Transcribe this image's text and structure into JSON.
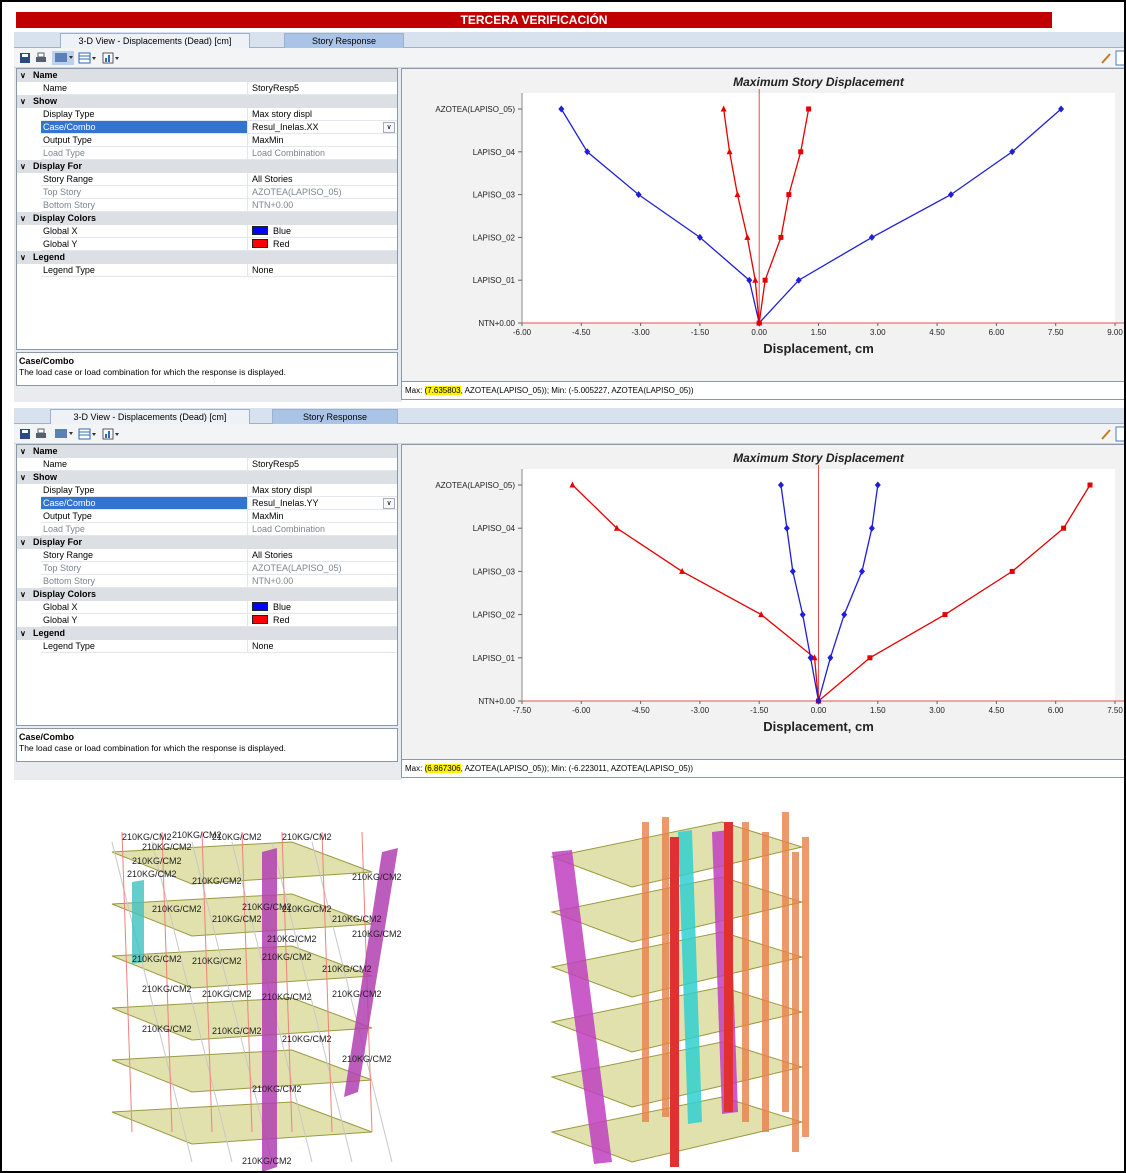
{
  "header": {
    "title": "TERCERA VERIFICACIÓN"
  },
  "panels": [
    {
      "tabs": [
        "3-D View  - Displacements (Dead)  [cm]",
        "Story Response"
      ],
      "properties": [
        {
          "type": "cat",
          "label": "Name"
        },
        {
          "type": "item",
          "key": "Name",
          "value": "StoryResp5"
        },
        {
          "type": "cat",
          "label": "Show"
        },
        {
          "type": "item",
          "key": "Display Type",
          "value": "Max story displ"
        },
        {
          "type": "sel",
          "key": "Case/Combo",
          "value": "Resul_Inelas.XX"
        },
        {
          "type": "item",
          "key": "Output Type",
          "value": "MaxMin"
        },
        {
          "type": "grey",
          "key": "Load Type",
          "value": "Load Combination"
        },
        {
          "type": "cat",
          "label": "Display For"
        },
        {
          "type": "item",
          "key": "Story Range",
          "value": "All Stories"
        },
        {
          "type": "grey",
          "key": "Top Story",
          "value": "AZOTEA(LAPISO_05)"
        },
        {
          "type": "grey",
          "key": "Bottom Story",
          "value": "NTN+0.00"
        },
        {
          "type": "cat",
          "label": "Display Colors"
        },
        {
          "type": "color",
          "key": "Global X",
          "value": "Blue",
          "color": "#0000ff"
        },
        {
          "type": "color",
          "key": "Global Y",
          "value": "Red",
          "color": "#ff0000"
        },
        {
          "type": "cat",
          "label": "Legend"
        },
        {
          "type": "item",
          "key": "Legend Type",
          "value": "None"
        }
      ],
      "description": {
        "title": "Case/Combo",
        "text": "The load case or load combination for which the response is displayed."
      },
      "status": {
        "max_prefix": "Max: ",
        "max_value": "(7.635803",
        "max_rest": ", AZOTEA(LAPISO_05));   Min: (-5.005227, AZOTEA(LAPISO_05))"
      }
    },
    {
      "tabs": [
        "3-D View  - Displacements (Dead)  [cm]",
        "Story Response"
      ],
      "properties": [
        {
          "type": "cat",
          "label": "Name"
        },
        {
          "type": "item",
          "key": "Name",
          "value": "StoryResp5"
        },
        {
          "type": "cat",
          "label": "Show"
        },
        {
          "type": "item",
          "key": "Display Type",
          "value": "Max story displ"
        },
        {
          "type": "sel",
          "key": "Case/Combo",
          "value": "Resul_Inelas.YY"
        },
        {
          "type": "item",
          "key": "Output Type",
          "value": "MaxMin"
        },
        {
          "type": "grey",
          "key": "Load Type",
          "value": "Load Combination"
        },
        {
          "type": "cat",
          "label": "Display For"
        },
        {
          "type": "item",
          "key": "Story Range",
          "value": "All Stories"
        },
        {
          "type": "grey",
          "key": "Top Story",
          "value": "AZOTEA(LAPISO_05)"
        },
        {
          "type": "grey",
          "key": "Bottom Story",
          "value": "NTN+0.00"
        },
        {
          "type": "cat",
          "label": "Display Colors"
        },
        {
          "type": "color",
          "key": "Global X",
          "value": "Blue",
          "color": "#0000ff"
        },
        {
          "type": "color",
          "key": "Global Y",
          "value": "Red",
          "color": "#ff0000"
        },
        {
          "type": "cat",
          "label": "Legend"
        },
        {
          "type": "item",
          "key": "Legend Type",
          "value": "None"
        }
      ],
      "description": {
        "title": "Case/Combo",
        "text": "The load case or load combination for which the response is displayed."
      },
      "status": {
        "max_prefix": "Max: ",
        "max_value": "(6.867306",
        "max_rest": ", AZOTEA(LAPISO_05));   Min: (-6.223011, AZOTEA(LAPISO_05))"
      }
    }
  ],
  "chart_data": [
    {
      "type": "line",
      "title": "Maximum Story Displacement",
      "xlabel": "Displacement, cm",
      "ylabel": "",
      "xlim": [
        -6.0,
        9.0
      ],
      "xticks": [
        "-6.00",
        "-4.50",
        "-3.00",
        "-1.50",
        "0.00",
        "1.50",
        "3.00",
        "4.50",
        "6.00",
        "7.50",
        "9.00"
      ],
      "categories": [
        "NTN+0.00",
        "LAPISO_01",
        "LAPISO_02",
        "LAPISO_03",
        "LAPISO_04",
        "AZOTEA(LAPISO_05)"
      ],
      "series": [
        {
          "color": "#1f1fd6",
          "marker": "diamond",
          "values": [
            0,
            1.0,
            2.85,
            4.85,
            6.4,
            7.635803
          ]
        },
        {
          "color": "#1f1fd6",
          "marker": "diamond",
          "values": [
            0,
            -0.25,
            -1.5,
            -3.05,
            -4.35,
            -5.005227
          ]
        },
        {
          "color": "#e60000",
          "marker": "square",
          "values": [
            0,
            0.15,
            0.55,
            0.75,
            1.05,
            1.25
          ]
        },
        {
          "color": "#e60000",
          "marker": "triangle",
          "values": [
            0,
            -0.1,
            -0.3,
            -0.55,
            -0.75,
            -0.9
          ]
        }
      ],
      "grid": false,
      "legend": "none"
    },
    {
      "type": "line",
      "title": "Maximum Story Displacement",
      "xlabel": "Displacement, cm",
      "ylabel": "",
      "xlim": [
        -7.5,
        7.5
      ],
      "xticks": [
        "-7.50",
        "-6.00",
        "-4.50",
        "-3.00",
        "-1.50",
        "0.00",
        "1.50",
        "3.00",
        "4.50",
        "6.00",
        "7.50"
      ],
      "categories": [
        "NTN+0.00",
        "LAPISO_01",
        "LAPISO_02",
        "LAPISO_03",
        "LAPISO_04",
        "AZOTEA(LAPISO_05)"
      ],
      "series": [
        {
          "color": "#e60000",
          "marker": "square",
          "values": [
            0,
            1.3,
            3.2,
            4.9,
            6.2,
            6.867306
          ]
        },
        {
          "color": "#e60000",
          "marker": "triangle",
          "values": [
            0,
            -0.1,
            -1.45,
            -3.45,
            -5.1,
            -6.223011
          ]
        },
        {
          "color": "#1f1fd6",
          "marker": "diamond",
          "values": [
            0,
            0.3,
            0.65,
            1.1,
            1.35,
            1.5
          ]
        },
        {
          "color": "#1f1fd6",
          "marker": "diamond",
          "values": [
            0,
            -0.2,
            -0.4,
            -0.65,
            -0.8,
            -0.95
          ]
        }
      ],
      "grid": false,
      "legend": "none"
    }
  ],
  "models": {
    "left_labels": [
      "210KG/CM2",
      "210KG/CM2",
      "210KG/CM2",
      "210KG/CM2",
      "210KG/CM2",
      "210KG/CM2",
      "210KG/CM2",
      "210KG/CM2",
      "210KG/CM2",
      "210KG/CM2",
      "210KG/CM2",
      "210KG/CM2",
      "210KG/CM2",
      "210KG/CM2",
      "210KG/CM2",
      "210KG/CM2",
      "210KG/CM2",
      "210KG/CM2",
      "210KG/CM2",
      "210KG/CM2",
      "210KG/CM2",
      "210KG/CM2",
      "210KG/CM2",
      "210KG/CM2",
      "210KG/CM2",
      "210KG/CM2",
      "210KG/CM2",
      "210KG/CM2",
      "210KG/CM2",
      "210KG/CM2"
    ]
  }
}
